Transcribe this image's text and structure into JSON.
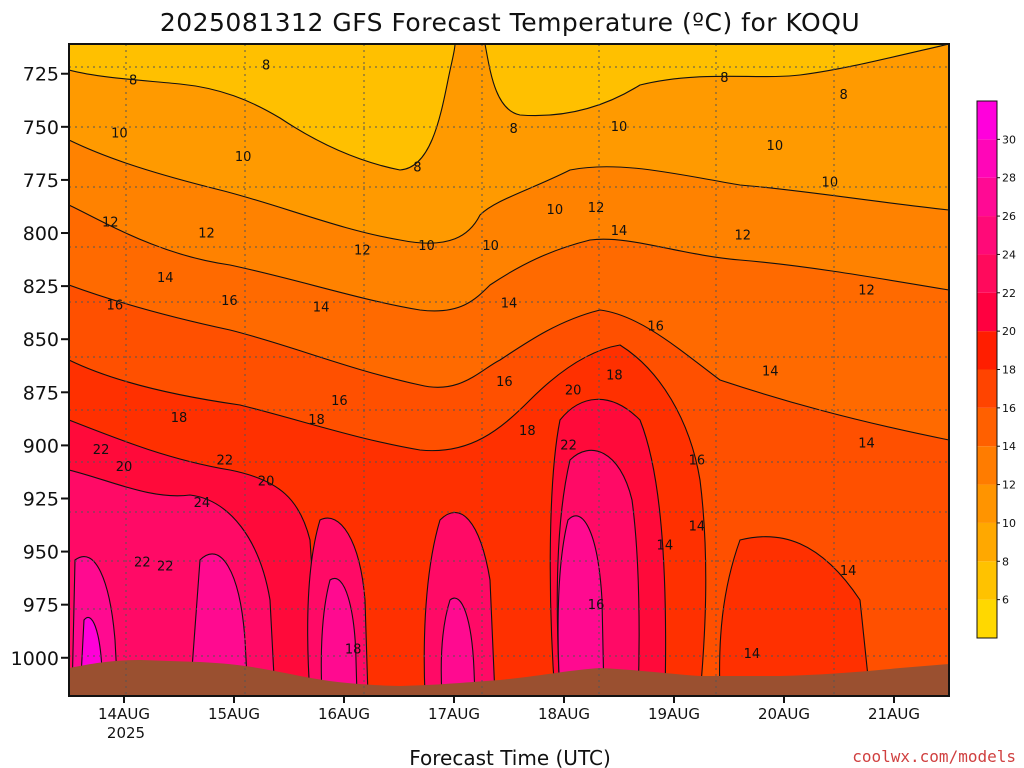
{
  "page": {
    "credit": "coolwx.com/models"
  },
  "chart_data": {
    "type": "heatmap",
    "title": "2025081312 GFS Forecast Temperature (ºC) for KOQU",
    "xlabel": "Forecast Time (UTC)",
    "ylabel": "",
    "y_axis": {
      "ticks": [
        725,
        750,
        775,
        800,
        825,
        850,
        875,
        900,
        925,
        950,
        975,
        1000
      ],
      "range": [
        711,
        1018
      ],
      "inverted": true,
      "unit": "hPa"
    },
    "x_axis": {
      "ticks": [
        "14AUG",
        "15AUG",
        "16AUG",
        "17AUG",
        "18AUG",
        "19AUG",
        "20AUG",
        "21AUG"
      ],
      "sublabel": "2025",
      "range_hours": [
        -12,
        180
      ]
    },
    "grid": true,
    "colorbar": {
      "levels": [
        4,
        6,
        8,
        10,
        12,
        14,
        16,
        18,
        20,
        22,
        24,
        26,
        28,
        30,
        32
      ],
      "labels": [
        6,
        8,
        10,
        12,
        14,
        16,
        18,
        20,
        22,
        24,
        26,
        28,
        30
      ],
      "colors": [
        "#ffd800",
        "#ffc200",
        "#ffa800",
        "#ff9400",
        "#ff7c00",
        "#ff6000",
        "#ff4400",
        "#ff1e00",
        "#ff0040",
        "#ff0a5c",
        "#ff0a78",
        "#ff0a94",
        "#ff06b8",
        "#ff00dc"
      ]
    },
    "contour_labels": [
      {
        "t": 2,
        "p": 730,
        "v": "8"
      },
      {
        "t": 31,
        "p": 723,
        "v": "8"
      },
      {
        "t": 64,
        "p": 771,
        "v": "8"
      },
      {
        "t": 85,
        "p": 753,
        "v": "8"
      },
      {
        "t": 131,
        "p": 729,
        "v": "8"
      },
      {
        "t": 157,
        "p": 737,
        "v": "8"
      },
      {
        "t": -1,
        "p": 755,
        "v": "10"
      },
      {
        "t": 26,
        "p": 766,
        "v": "10"
      },
      {
        "t": 66,
        "p": 808,
        "v": "10"
      },
      {
        "t": 80,
        "p": 808,
        "v": "10"
      },
      {
        "t": 94,
        "p": 791,
        "v": "10"
      },
      {
        "t": 108,
        "p": 752,
        "v": "10"
      },
      {
        "t": 142,
        "p": 761,
        "v": "10"
      },
      {
        "t": 154,
        "p": 778,
        "v": "10"
      },
      {
        "t": -3,
        "p": 797,
        "v": "12"
      },
      {
        "t": 18,
        "p": 802,
        "v": "12"
      },
      {
        "t": 52,
        "p": 810,
        "v": "12"
      },
      {
        "t": 103,
        "p": 790,
        "v": "12"
      },
      {
        "t": 135,
        "p": 803,
        "v": "12"
      },
      {
        "t": 162,
        "p": 829,
        "v": "12"
      },
      {
        "t": 9,
        "p": 823,
        "v": "14"
      },
      {
        "t": 43,
        "p": 837,
        "v": "14"
      },
      {
        "t": 84,
        "p": 835,
        "v": "14"
      },
      {
        "t": 108,
        "p": 801,
        "v": "14"
      },
      {
        "t": 141,
        "p": 867,
        "v": "14"
      },
      {
        "t": 162,
        "p": 901,
        "v": "14"
      },
      {
        "t": 118,
        "p": 949,
        "v": "14"
      },
      {
        "t": 125,
        "p": 940,
        "v": "14"
      },
      {
        "t": 158,
        "p": 961,
        "v": "14"
      },
      {
        "t": 137,
        "p": 1000,
        "v": "14"
      },
      {
        "t": -2,
        "p": 836,
        "v": "16"
      },
      {
        "t": 23,
        "p": 834,
        "v": "16"
      },
      {
        "t": 47,
        "p": 881,
        "v": "16"
      },
      {
        "t": 83,
        "p": 872,
        "v": "16"
      },
      {
        "t": 116,
        "p": 846,
        "v": "16"
      },
      {
        "t": 125,
        "p": 909,
        "v": "16"
      },
      {
        "t": 103,
        "p": 977,
        "v": "16"
      },
      {
        "t": 12,
        "p": 889,
        "v": "18"
      },
      {
        "t": 42,
        "p": 890,
        "v": "18"
      },
      {
        "t": 88,
        "p": 895,
        "v": "18"
      },
      {
        "t": 107,
        "p": 869,
        "v": "18"
      },
      {
        "t": 50,
        "p": 998,
        "v": "18"
      },
      {
        "t": 98,
        "p": 876,
        "v": "20"
      },
      {
        "t": 0,
        "p": 912,
        "v": "20"
      },
      {
        "t": 31,
        "p": 919,
        "v": "20"
      },
      {
        "t": -5,
        "p": 904,
        "v": "22"
      },
      {
        "t": 22,
        "p": 909,
        "v": "22"
      },
      {
        "t": 97,
        "p": 902,
        "v": "22"
      },
      {
        "t": 4,
        "p": 957,
        "v": "22"
      },
      {
        "t": 9,
        "p": 959,
        "v": "22"
      },
      {
        "t": 17,
        "p": 929,
        "v": "24"
      }
    ]
  }
}
